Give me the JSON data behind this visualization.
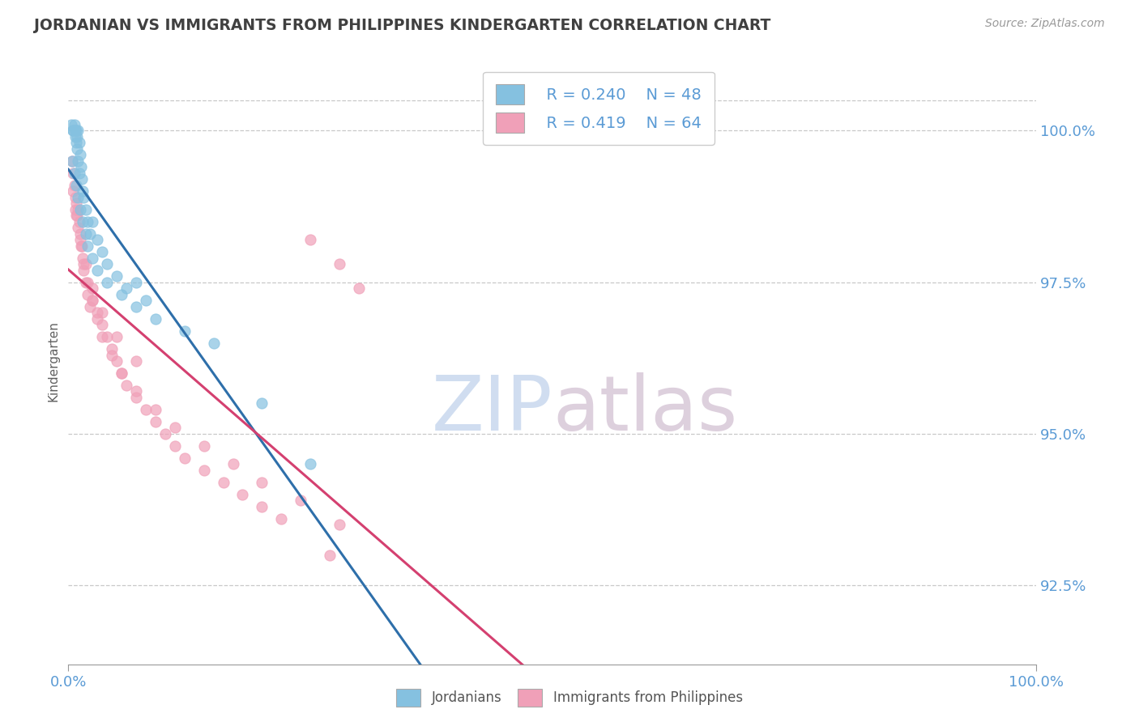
{
  "title": "JORDANIAN VS IMMIGRANTS FROM PHILIPPINES KINDERGARTEN CORRELATION CHART",
  "source_text": "Source: ZipAtlas.com",
  "ylabel": "Kindergarten",
  "watermark_zip": "ZIP",
  "watermark_atlas": "atlas",
  "xmin": 0.0,
  "xmax": 100.0,
  "ymin": 91.2,
  "ymax": 101.2,
  "yticks": [
    92.5,
    95.0,
    97.5,
    100.0
  ],
  "ytick_labels": [
    "92.5%",
    "95.0%",
    "97.5%",
    "100.0%"
  ],
  "xtick_labels": [
    "0.0%",
    "100.0%"
  ],
  "legend_r1": "R = 0.240",
  "legend_n1": "N = 48",
  "legend_r2": "R = 0.419",
  "legend_n2": "N = 64",
  "color_blue": "#85c1e0",
  "color_pink": "#f0a0b8",
  "color_blue_line": "#2e6faa",
  "color_pink_line": "#d44070",
  "color_axis_labels": "#5b9bd5",
  "color_title": "#404040",
  "blue_intercept": 97.0,
  "blue_slope": 0.032,
  "pink_intercept": 96.8,
  "pink_slope": 0.028,
  "blue_x": [
    0.3,
    0.5,
    0.5,
    0.6,
    0.7,
    0.7,
    0.8,
    0.8,
    0.9,
    0.9,
    1.0,
    1.0,
    1.1,
    1.1,
    1.2,
    1.3,
    1.4,
    1.5,
    1.6,
    1.8,
    2.0,
    2.2,
    2.5,
    3.0,
    3.5,
    4.0,
    5.0,
    6.0,
    7.0,
    8.0,
    0.4,
    0.6,
    0.8,
    1.0,
    1.2,
    1.5,
    1.8,
    2.0,
    2.5,
    3.0,
    4.0,
    5.5,
    7.0,
    9.0,
    12.0,
    15.0,
    20.0,
    25.0
  ],
  "blue_y": [
    100.1,
    100.0,
    100.0,
    100.1,
    100.0,
    99.9,
    100.0,
    99.8,
    99.9,
    99.7,
    100.0,
    99.5,
    99.8,
    99.3,
    99.6,
    99.4,
    99.2,
    99.0,
    98.9,
    98.7,
    98.5,
    98.3,
    98.5,
    98.2,
    98.0,
    97.8,
    97.6,
    97.4,
    97.5,
    97.2,
    99.5,
    99.3,
    99.1,
    98.9,
    98.7,
    98.5,
    98.3,
    98.1,
    97.9,
    97.7,
    97.5,
    97.3,
    97.1,
    96.9,
    96.7,
    96.5,
    95.5,
    94.5
  ],
  "pink_x": [
    0.4,
    0.5,
    0.6,
    0.7,
    0.8,
    0.9,
    1.0,
    1.1,
    1.2,
    1.4,
    1.5,
    1.6,
    1.8,
    2.0,
    2.2,
    2.5,
    3.0,
    3.5,
    4.0,
    4.5,
    5.0,
    5.5,
    6.0,
    7.0,
    8.0,
    9.0,
    10.0,
    11.0,
    12.0,
    14.0,
    16.0,
    18.0,
    20.0,
    22.0,
    25.0,
    28.0,
    30.0,
    0.5,
    0.7,
    1.0,
    1.3,
    1.6,
    2.0,
    2.5,
    3.0,
    3.5,
    4.5,
    5.5,
    7.0,
    9.0,
    11.0,
    14.0,
    17.0,
    20.0,
    24.0,
    28.0,
    0.8,
    1.2,
    1.8,
    2.5,
    3.5,
    5.0,
    7.0,
    27.0
  ],
  "pink_y": [
    99.5,
    99.3,
    99.1,
    98.9,
    98.8,
    98.6,
    98.7,
    98.5,
    98.3,
    98.1,
    97.9,
    97.7,
    97.5,
    97.3,
    97.1,
    97.2,
    97.0,
    96.8,
    96.6,
    96.4,
    96.2,
    96.0,
    95.8,
    95.6,
    95.4,
    95.2,
    95.0,
    94.8,
    94.6,
    94.4,
    94.2,
    94.0,
    93.8,
    93.6,
    98.2,
    97.8,
    97.4,
    99.0,
    98.7,
    98.4,
    98.1,
    97.8,
    97.5,
    97.2,
    96.9,
    96.6,
    96.3,
    96.0,
    95.7,
    95.4,
    95.1,
    94.8,
    94.5,
    94.2,
    93.9,
    93.5,
    98.6,
    98.2,
    97.8,
    97.4,
    97.0,
    96.6,
    96.2,
    93.0
  ]
}
